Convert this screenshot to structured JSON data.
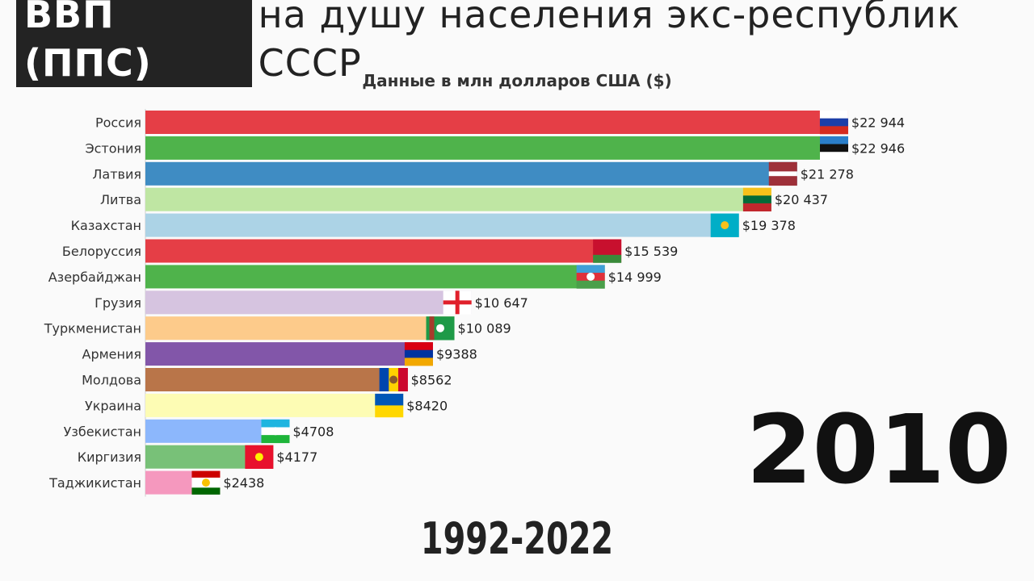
{
  "header": {
    "title_highlight": "ВВП (ППС)",
    "title_rest": "на душу населения экс-республик СССР",
    "subtitle": "Данные в млн долларов США ($)"
  },
  "year": "2010",
  "range": "1992-2022",
  "chart_data": {
    "type": "bar",
    "orientation": "horizontal",
    "title": "ВВП (ППС) на душу населения экс-республик СССР",
    "subtitle": "Данные в млн долларов США ($)",
    "xlim": [
      0,
      22946
    ],
    "grid": false,
    "categories": [
      "Россия",
      "Эстония",
      "Латвия",
      "Литва",
      "Казахстан",
      "Белоруссия",
      "Азербайджан",
      "Грузия",
      "Туркменистан",
      "Армения",
      "Молдова",
      "Украина",
      "Узбекистан",
      "Киргизия",
      "Таджикистан"
    ],
    "values": [
      22944,
      22946,
      21278,
      20437,
      19378,
      15539,
      14999,
      10647,
      10089,
      9388,
      8562,
      8420,
      4708,
      4177,
      2438
    ],
    "value_labels": [
      "$22 944",
      "$22 946",
      "$21 278",
      "$20 437",
      "$19 378",
      "$15 539",
      "$14 999",
      "$10 647",
      "$10 089",
      "$9388",
      "$8562",
      "$8420",
      "$4708",
      "$4177",
      "$2438"
    ],
    "colors": [
      "#e53e46",
      "#4fb34b",
      "#3f8cc3",
      "#bfe6a3",
      "#acd3e6",
      "#e53e46",
      "#4fb34b",
      "#d6c4e0",
      "#fdcb8b",
      "#8256a9",
      "#b97549",
      "#fdfcb4",
      "#8cb7fc",
      "#78c178",
      "#f598be"
    ],
    "flags": [
      {
        "country": "Россия",
        "stripes": [
          "#ffffff",
          "#1c3fa8",
          "#d52b1e"
        ],
        "dir": "h"
      },
      {
        "country": "Эстония",
        "stripes": [
          "#2a7ec9",
          "#111111",
          "#ffffff"
        ],
        "dir": "h"
      },
      {
        "country": "Латвия",
        "stripes": [
          "#9e3039",
          "#ffffff",
          "#9e3039"
        ],
        "weights": [
          2,
          1,
          2
        ],
        "dir": "h"
      },
      {
        "country": "Литва",
        "stripes": [
          "#f6c11a",
          "#046a38",
          "#c1272d"
        ],
        "dir": "h"
      },
      {
        "country": "Казахстан",
        "stripes": [
          "#00aec7"
        ],
        "dir": "h",
        "emblem": "#f6c11a"
      },
      {
        "country": "Белоруссия",
        "stripes": [
          "#c8102e",
          "#3a8a3a"
        ],
        "weights": [
          2,
          1
        ],
        "dir": "h"
      },
      {
        "country": "Азербайджан",
        "stripes": [
          "#3f9fd8",
          "#e0303b",
          "#4a9f4a"
        ],
        "dir": "h",
        "emblem": "#ffffff"
      },
      {
        "country": "Грузия",
        "stripes": [
          "#ffffff"
        ],
        "dir": "h",
        "cross": "#e0202b"
      },
      {
        "country": "Туркменистан",
        "stripes": [
          "#1e9a47"
        ],
        "dir": "h",
        "hoist": "#a63b2c",
        "emblem": "#ffffff"
      },
      {
        "country": "Армения",
        "stripes": [
          "#d90012",
          "#0033a0",
          "#f2a800"
        ],
        "dir": "h"
      },
      {
        "country": "Молдова",
        "stripes": [
          "#0046ae",
          "#ffd200",
          "#cc092f"
        ],
        "dir": "v",
        "emblem": "#8a5a2b"
      },
      {
        "country": "Украина",
        "stripes": [
          "#0057b7",
          "#ffd700"
        ],
        "dir": "h"
      },
      {
        "country": "Узбекистан",
        "stripes": [
          "#1eb5e0",
          "#ffffff",
          "#1eb53a"
        ],
        "dir": "h",
        "emblem": "#ffffff"
      },
      {
        "country": "Киргизия",
        "stripes": [
          "#e8112d"
        ],
        "dir": "h",
        "emblem": "#ffef00"
      },
      {
        "country": "Таджикистан",
        "stripes": [
          "#cc0000",
          "#ffffff",
          "#006600"
        ],
        "weights": [
          2,
          3,
          2
        ],
        "dir": "h",
        "emblem": "#f8c300"
      }
    ]
  }
}
